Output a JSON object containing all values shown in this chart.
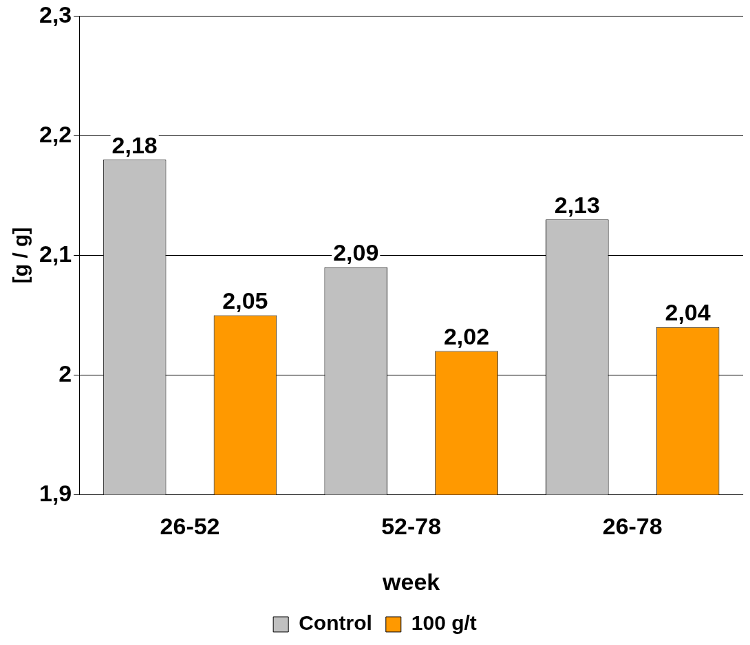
{
  "chart_data": {
    "type": "bar",
    "xlabel": "week",
    "ylabel": "[g / g]",
    "categories": [
      "26-52",
      "52-78",
      "26-78"
    ],
    "series": [
      {
        "name": "Control",
        "color": "#c0c0c0",
        "values": [
          2.18,
          2.09,
          2.13
        ],
        "value_labels": [
          "2,18",
          "2,09",
          "2,13"
        ]
      },
      {
        "name": "100 g/t",
        "color": "#ff9900",
        "values": [
          2.05,
          2.02,
          2.04
        ],
        "value_labels": [
          "2,05",
          "2,02",
          "2,04"
        ]
      }
    ],
    "ylim": [
      1.9,
      2.3
    ],
    "yticks": [
      {
        "value": 1.9,
        "label": "1,9"
      },
      2,
      {
        "value": 2.1,
        "label": "2,1"
      },
      {
        "value": 2.2,
        "label": "2,2"
      },
      {
        "value": 2.3,
        "label": "2,3"
      }
    ],
    "grid": "y",
    "legend": "bottom"
  }
}
